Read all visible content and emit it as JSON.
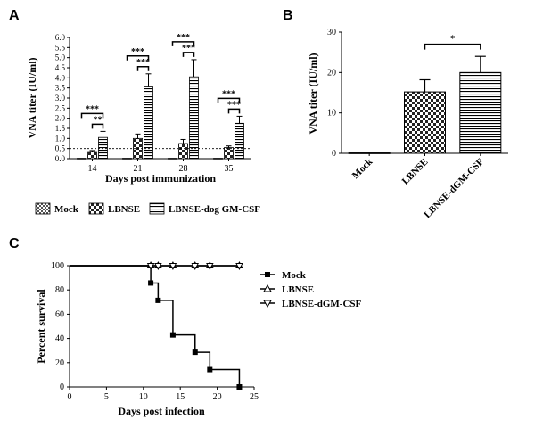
{
  "panels": {
    "a": "A",
    "b": "B",
    "c": "C"
  },
  "legend_markers": {
    "mock": "square",
    "lbnse": "triangle-up",
    "dgm": "triangle-down"
  },
  "chart_data": [
    {
      "id": "A",
      "type": "bar",
      "title": "",
      "xlabel": "Days post immunization",
      "ylabel": "VNA titer (IU/ml)",
      "ylim": [
        0,
        6
      ],
      "yticks": [
        "0.0",
        "0.5",
        "1.0",
        "1.5",
        "2.0",
        "2.5",
        "3.0",
        "3.5",
        "4.0",
        "4.5",
        "5.0",
        "5.5",
        "6.0"
      ],
      "categories": [
        "14",
        "21",
        "28",
        "35"
      ],
      "series": [
        {
          "name": "Mock",
          "values": [
            0.02,
            0.02,
            0.02,
            0.02
          ],
          "errors": [
            0,
            0,
            0,
            0
          ],
          "pattern": "mock"
        },
        {
          "name": "LBNSE",
          "values": [
            0.35,
            1.0,
            0.75,
            0.55
          ],
          "errors": [
            0.05,
            0.22,
            0.2,
            0.08
          ],
          "pattern": "check"
        },
        {
          "name": "LBNSE-dog GM-CSF",
          "values": [
            1.05,
            3.55,
            4.05,
            1.75
          ],
          "errors": [
            0.3,
            0.65,
            0.85,
            0.35
          ],
          "pattern": "hstripe"
        }
      ],
      "threshold": 0.5,
      "significance": [
        {
          "category": "14",
          "pair": "mock-gm",
          "label": "***"
        },
        {
          "category": "14",
          "pair": "lbnse-gm",
          "label": "**"
        },
        {
          "category": "21",
          "pair": "mock-gm",
          "label": "***"
        },
        {
          "category": "21",
          "pair": "lbnse-gm",
          "label": "***"
        },
        {
          "category": "28",
          "pair": "mock-gm",
          "label": "***"
        },
        {
          "category": "28",
          "pair": "lbnse-gm",
          "label": "***"
        },
        {
          "category": "35",
          "pair": "mock-gm",
          "label": "***"
        },
        {
          "category": "35",
          "pair": "lbnse-gm",
          "label": "***"
        }
      ],
      "legend": [
        "Mock",
        "LBNSE",
        "LBNSE-dog GM-CSF"
      ]
    },
    {
      "id": "B",
      "type": "bar",
      "title": "",
      "xlabel": "",
      "ylabel": "VNA titer (IU/ml)",
      "ylim": [
        0,
        30
      ],
      "yticks": [
        "0",
        "10",
        "20",
        "30"
      ],
      "categories": [
        "Mock",
        "LBNSE",
        "LBNSE-dGM-CSF"
      ],
      "values": [
        0.1,
        15.2,
        20.0
      ],
      "errors": [
        0,
        3.0,
        4.0
      ],
      "patterns": [
        "mock",
        "check",
        "hstripe"
      ],
      "significance": [
        {
          "from": "LBNSE",
          "to": "LBNSE-dGM-CSF",
          "label": "*"
        }
      ]
    },
    {
      "id": "C",
      "type": "line",
      "title": "",
      "xlabel": "Days post infection",
      "ylabel": "Percent survival",
      "xlim": [
        0,
        25
      ],
      "ylim": [
        0,
        100
      ],
      "xticks": [
        "0",
        "5",
        "10",
        "15",
        "20",
        "25"
      ],
      "yticks": [
        "0",
        "20",
        "40",
        "60",
        "80",
        "100"
      ],
      "series": [
        {
          "name": "Mock",
          "marker": "square",
          "x": [
            0,
            11,
            12,
            14,
            17,
            19,
            23
          ],
          "y": [
            100,
            85.7,
            71.4,
            42.9,
            28.6,
            14.3,
            0
          ]
        },
        {
          "name": "LBNSE",
          "marker": "triangle-up",
          "x": [
            0,
            11,
            12,
            14,
            17,
            19,
            23
          ],
          "y": [
            100,
            100,
            100,
            100,
            100,
            100,
            100
          ]
        },
        {
          "name": "LBNSE-dGM-CSF",
          "marker": "triangle-down",
          "x": [
            0,
            11,
            12,
            14,
            17,
            19,
            23
          ],
          "y": [
            100,
            100,
            100,
            100,
            100,
            100,
            100
          ]
        }
      ],
      "legend": [
        "Mock",
        "LBNSE",
        "LBNSE-dGM-CSF"
      ]
    }
  ]
}
